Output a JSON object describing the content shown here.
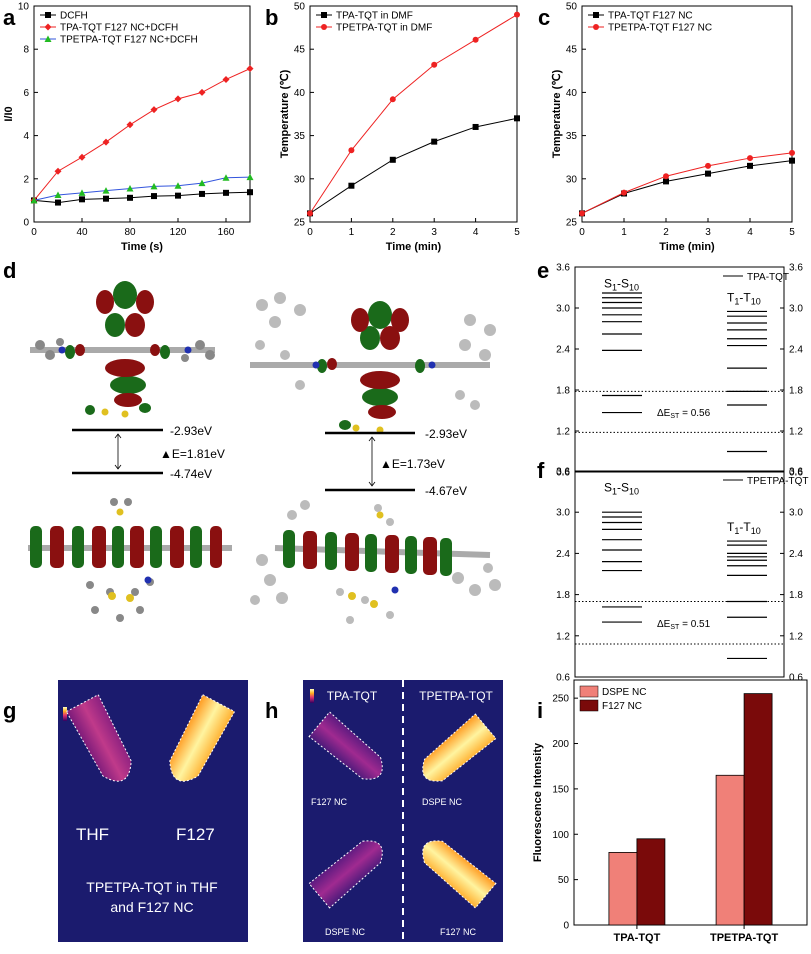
{
  "panel_labels": [
    "a",
    "b",
    "c",
    "d",
    "e",
    "f",
    "g",
    "h",
    "i"
  ],
  "colors": {
    "black": "#000000",
    "red": "#ee2222",
    "green": "#22bb22",
    "blue": "#3355dd",
    "dspe": "#f08078",
    "f127": "#7a0a0a"
  },
  "chart_data": [
    {
      "id": "a",
      "type": "line",
      "xlabel": "Time (s)",
      "ylabel": "I/I0",
      "xlim": [
        0,
        180
      ],
      "ylim": [
        0,
        10
      ],
      "xticks": [
        0,
        40,
        80,
        120,
        160
      ],
      "yticks": [
        0,
        2,
        4,
        6,
        8,
        10
      ],
      "x": [
        0,
        20,
        40,
        60,
        80,
        100,
        120,
        140,
        160,
        180
      ],
      "legend": "top-left",
      "series": [
        {
          "name": "DCFH",
          "color": "#000000",
          "marker": "square",
          "values": [
            1.0,
            0.9,
            1.05,
            1.08,
            1.12,
            1.2,
            1.22,
            1.3,
            1.35,
            1.38
          ]
        },
        {
          "name": "TPA-TQT F127 NC+DCFH",
          "color": "#ee2222",
          "marker": "diamond",
          "values": [
            1.0,
            2.35,
            3.0,
            3.7,
            4.5,
            5.2,
            5.7,
            6.0,
            6.6,
            7.1
          ]
        },
        {
          "name": "TPETPA-TQT F127 NC+DCFH",
          "color": "#22bb22",
          "marker": "triangle",
          "line_color": "#3355dd",
          "values": [
            1.0,
            1.25,
            1.35,
            1.45,
            1.55,
            1.65,
            1.68,
            1.8,
            2.05,
            2.08
          ]
        }
      ]
    },
    {
      "id": "b",
      "type": "line",
      "xlabel": "Time (min)",
      "ylabel": "Temperature (℃)",
      "xlim": [
        0,
        5
      ],
      "ylim": [
        25,
        50
      ],
      "xticks": [
        0,
        1,
        2,
        3,
        4,
        5
      ],
      "yticks": [
        25,
        30,
        35,
        40,
        45,
        50
      ],
      "x": [
        0,
        1,
        2,
        3,
        4,
        5
      ],
      "legend": "top-left",
      "series": [
        {
          "name": "TPA-TQT in DMF",
          "color": "#000000",
          "marker": "square",
          "values": [
            26.0,
            29.2,
            32.2,
            34.3,
            36.0,
            37.0
          ]
        },
        {
          "name": "TPETPA-TQT in DMF",
          "color": "#ee2222",
          "marker": "circle",
          "values": [
            26.0,
            33.3,
            39.2,
            43.2,
            46.1,
            49.0
          ]
        }
      ]
    },
    {
      "id": "c",
      "type": "line",
      "xlabel": "Time (min)",
      "ylabel": "Temperature (℃)",
      "xlim": [
        0,
        5
      ],
      "ylim": [
        25,
        50
      ],
      "xticks": [
        0,
        1,
        2,
        3,
        4,
        5
      ],
      "yticks": [
        25,
        30,
        35,
        40,
        45,
        50
      ],
      "x": [
        0,
        1,
        2,
        3,
        4,
        5
      ],
      "legend": "top-left",
      "series": [
        {
          "name": "TPA-TQT F127 NC",
          "color": "#000000",
          "marker": "square",
          "values": [
            26.0,
            28.3,
            29.7,
            30.6,
            31.5,
            32.1
          ]
        },
        {
          "name": "TPETPA-TQT F127 NC",
          "color": "#ee2222",
          "marker": "circle",
          "values": [
            26.0,
            28.4,
            30.3,
            31.5,
            32.4,
            33.0
          ]
        }
      ]
    },
    {
      "id": "e",
      "type": "energy-levels",
      "legend": "TPA-TQT",
      "ylim": [
        0.6,
        3.6
      ],
      "yticks": [
        0.6,
        1.2,
        1.8,
        2.4,
        3.0,
        3.6
      ],
      "singlet_label": "S1-S10",
      "triplet_label": "T1-T10",
      "singlets": [
        1.47,
        1.72,
        2.38,
        2.62,
        2.8,
        2.9,
        3.0,
        3.08,
        3.15,
        3.22
      ],
      "triplets": [
        0.9,
        1.58,
        1.78,
        2.12,
        2.45,
        2.55,
        2.68,
        2.78,
        2.88,
        2.95
      ],
      "dotted": [
        1.78,
        1.18
      ],
      "dE_label": "ΔE",
      "dE_sub": "ST",
      "dE_value": "= 0.56"
    },
    {
      "id": "f",
      "type": "energy-levels",
      "legend": "TPETPA-TQT",
      "ylim": [
        0.6,
        3.6
      ],
      "yticks": [
        0.6,
        1.2,
        1.8,
        2.4,
        3.0,
        3.6
      ],
      "singlet_label": "S1-S10",
      "triplet_label": "T1-T10",
      "singlets": [
        1.4,
        1.62,
        2.15,
        2.28,
        2.45,
        2.6,
        2.75,
        2.85,
        2.93,
        3.0
      ],
      "triplets": [
        0.87,
        1.47,
        1.7,
        2.08,
        2.22,
        2.3,
        2.35,
        2.4,
        2.52,
        2.58
      ],
      "dotted": [
        1.7,
        1.08
      ],
      "dE_label": "ΔE",
      "dE_sub": "ST",
      "dE_value": "= 0.51"
    },
    {
      "id": "i",
      "type": "bar",
      "ylabel": "Fluorescence Intensity",
      "categories": [
        "TPA-TQT",
        "TPETPA-TQT"
      ],
      "ylim": [
        0,
        270
      ],
      "yticks": [
        0,
        50,
        100,
        150,
        200,
        250
      ],
      "legend": "top-left",
      "series": [
        {
          "name": "DSPE NC",
          "color": "#f08078",
          "values": [
            80,
            165
          ]
        },
        {
          "name": "F127 NC",
          "color": "#7a0a0a",
          "values": [
            95,
            255
          ]
        }
      ]
    }
  ],
  "panel_d": {
    "left": {
      "lumo": "-2.93eV",
      "homo": "-4.74eV",
      "gap": "▲E=1.81eV"
    },
    "right": {
      "lumo": "-2.93eV",
      "homo": "-4.67eV",
      "gap": "▲E=1.73eV"
    }
  },
  "panel_g": {
    "label_left": "THF",
    "label_right": "F127",
    "caption_line1": "TPETPA-TQT in THF",
    "caption_line2": "and F127 NC"
  },
  "panel_h": {
    "top_left": "TPA-TQT",
    "top_right": "TPETPA-TQT",
    "tl": "F127 NC",
    "tr": "DSPE NC",
    "bl": "DSPE NC",
    "br": "F127 NC"
  }
}
